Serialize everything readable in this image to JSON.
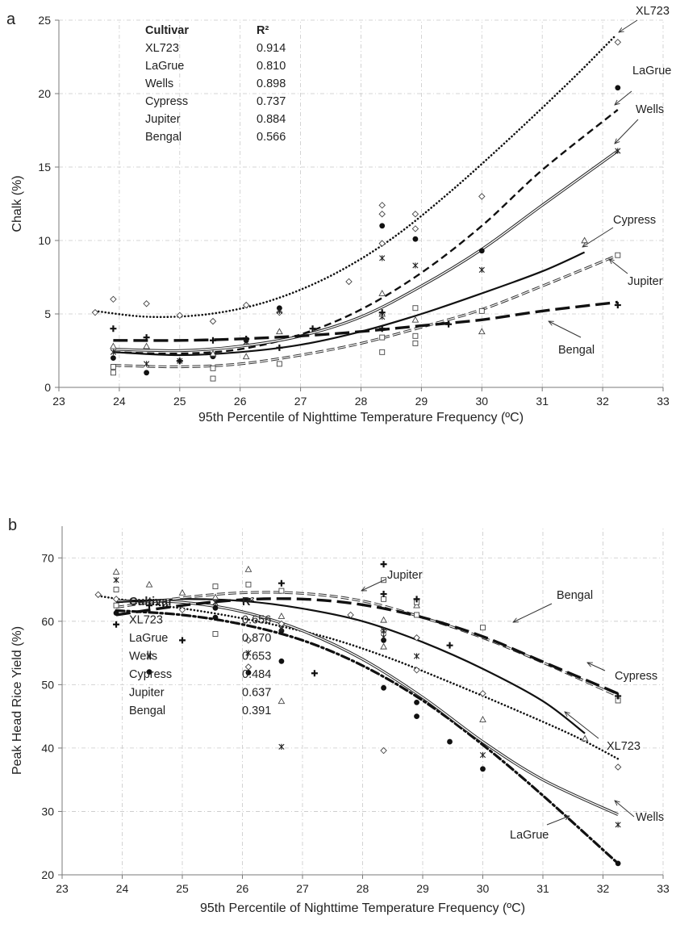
{
  "chart_data": [
    {
      "panel": "a",
      "type": "scatter",
      "xlabel": "95th Percentile of Nighttime Temperature Frequency (ºC)",
      "ylabel": "Chalk (%)",
      "xlim": [
        23,
        33
      ],
      "ylim": [
        0,
        25
      ],
      "xticks": [
        "23",
        "24",
        "25",
        "26",
        "27",
        "28",
        "29",
        "30",
        "31",
        "32",
        "33"
      ],
      "yticks": [
        "0",
        "5",
        "10",
        "15",
        "20",
        "25"
      ],
      "grid": true,
      "table": {
        "header": [
          "Cultivar",
          "R²"
        ],
        "rows": [
          [
            "XL723",
            "0.914"
          ],
          [
            "LaGrue",
            "0.810"
          ],
          [
            "Wells",
            "0.898"
          ],
          [
            "Cypress",
            "0.737"
          ],
          [
            "Jupiter",
            "0.884"
          ],
          [
            "Bengal",
            "0.566"
          ]
        ]
      },
      "series": [
        {
          "name": "XL723",
          "marker": "diamond",
          "trend": "dotted",
          "x": [
            23.6,
            23.9,
            24.45,
            25.0,
            25.55,
            26.1,
            26.65,
            27.8,
            28.35,
            28.35,
            28.35,
            28.9,
            28.9,
            30.0,
            32.25
          ],
          "y": [
            5.1,
            6.0,
            5.7,
            4.9,
            4.5,
            5.6,
            5.1,
            7.2,
            9.8,
            11.8,
            12.4,
            10.8,
            11.8,
            13.0,
            23.5
          ],
          "fit": [
            [
              23.6,
              5.2
            ],
            [
              24.5,
              4.8
            ],
            [
              25.5,
              5.0
            ],
            [
              26.5,
              5.9
            ],
            [
              27.5,
              7.6
            ],
            [
              28.5,
              10.1
            ],
            [
              29.5,
              13.4
            ],
            [
              30.5,
              17.1
            ],
            [
              31.5,
              21.0
            ],
            [
              32.2,
              23.9
            ]
          ]
        },
        {
          "name": "LaGrue",
          "marker": "circle",
          "trend": "dashed",
          "x": [
            23.9,
            24.45,
            25.55,
            26.1,
            26.65,
            28.35,
            28.9,
            30.0,
            32.25
          ],
          "y": [
            2.0,
            1.0,
            2.1,
            3.2,
            5.4,
            11.0,
            10.1,
            9.3,
            20.4
          ],
          "fit": [
            [
              23.9,
              2.4
            ],
            [
              25.0,
              2.3
            ],
            [
              26.0,
              2.6
            ],
            [
              27.0,
              3.6
            ],
            [
              28.0,
              5.3
            ],
            [
              29.0,
              7.8
            ],
            [
              30.0,
              11.0
            ],
            [
              31.0,
              14.8
            ],
            [
              32.25,
              18.9
            ]
          ]
        },
        {
          "name": "Wells",
          "marker": "asterisk",
          "trend": "double",
          "x": [
            23.9,
            24.45,
            25.0,
            25.55,
            26.1,
            26.65,
            28.35,
            28.35,
            28.9,
            30.0,
            32.25
          ],
          "y": [
            2.4,
            1.6,
            1.8,
            2.2,
            3.1,
            5.2,
            8.8,
            4.8,
            8.3,
            8.0,
            16.1
          ],
          "fit": [
            [
              23.9,
              2.6
            ],
            [
              25.0,
              2.5
            ],
            [
              26.0,
              2.8
            ],
            [
              27.0,
              3.5
            ],
            [
              28.0,
              4.8
            ],
            [
              29.0,
              6.9
            ],
            [
              30.0,
              9.4
            ],
            [
              31.0,
              12.4
            ],
            [
              32.25,
              16.1
            ]
          ]
        },
        {
          "name": "Cypress",
          "marker": "triangle",
          "trend": "solid",
          "x": [
            23.9,
            24.45,
            25.55,
            26.1,
            26.65,
            28.35,
            28.35,
            28.9,
            30.0,
            31.7
          ],
          "y": [
            2.8,
            2.8,
            2.3,
            2.1,
            3.8,
            6.4,
            5.0,
            4.6,
            3.8,
            10.0
          ],
          "fit": [
            [
              23.9,
              2.4
            ],
            [
              25.0,
              2.2
            ],
            [
              26.0,
              2.4
            ],
            [
              27.0,
              2.9
            ],
            [
              28.0,
              3.8
            ],
            [
              29.0,
              5.0
            ],
            [
              30.0,
              6.4
            ],
            [
              31.0,
              7.9
            ],
            [
              31.7,
              9.2
            ]
          ]
        },
        {
          "name": "Jupiter",
          "marker": "square",
          "trend": "dashed-double",
          "x": [
            23.9,
            23.9,
            25.55,
            25.55,
            26.65,
            28.35,
            28.35,
            28.9,
            28.9,
            28.9,
            30.0,
            32.25
          ],
          "y": [
            1.0,
            1.4,
            0.6,
            1.3,
            1.6,
            2.4,
            3.4,
            3.0,
            3.5,
            5.4,
            5.2,
            9.0
          ],
          "fit": [
            [
              23.9,
              1.5
            ],
            [
              25.0,
              1.4
            ],
            [
              26.0,
              1.6
            ],
            [
              27.0,
              2.2
            ],
            [
              28.0,
              3.0
            ],
            [
              29.0,
              4.1
            ],
            [
              30.0,
              5.3
            ],
            [
              31.0,
              6.9
            ],
            [
              32.25,
              9.0
            ]
          ]
        },
        {
          "name": "Bengal",
          "marker": "plus",
          "trend": "longdash",
          "x": [
            23.9,
            24.45,
            25.0,
            25.55,
            26.1,
            26.65,
            27.2,
            28.35,
            28.35,
            29.45,
            32.25
          ],
          "y": [
            4.0,
            3.4,
            1.8,
            3.2,
            3.3,
            2.7,
            4.0,
            5.1,
            4.0,
            4.3,
            5.6
          ],
          "fit": [
            [
              23.9,
              3.2
            ],
            [
              25.0,
              3.2
            ],
            [
              26.0,
              3.3
            ],
            [
              27.0,
              3.5
            ],
            [
              28.0,
              3.8
            ],
            [
              29.0,
              4.2
            ],
            [
              30.0,
              4.6
            ],
            [
              31.0,
              5.2
            ],
            [
              32.25,
              5.8
            ]
          ]
        }
      ],
      "annotations": [
        "XL723",
        "LaGrue",
        "Wells",
        "Cypress",
        "Jupiter",
        "Bengal"
      ]
    },
    {
      "panel": "b",
      "type": "scatter",
      "xlabel": "95th Percentile of Nighttime Temperature Frequency (ºC)",
      "ylabel": "Peak Head Rice Yield (%)",
      "xlim": [
        23,
        33
      ],
      "ylim": [
        20,
        75
      ],
      "xticks": [
        "23",
        "24",
        "25",
        "26",
        "27",
        "28",
        "29",
        "30",
        "31",
        "32",
        "33"
      ],
      "yticks": [
        "20",
        "30",
        "40",
        "50",
        "60",
        "70"
      ],
      "grid": true,
      "table": {
        "header": [
          "Cultivar",
          "R²"
        ],
        "rows": [
          [
            "XL723",
            "0.656"
          ],
          [
            "LaGrue",
            "0.870"
          ],
          [
            "Wells",
            "0.653"
          ],
          [
            "Cypress",
            "0.484"
          ],
          [
            "Jupiter",
            "0.637"
          ],
          [
            "Bengal",
            "0.391"
          ]
        ]
      },
      "series": [
        {
          "name": "XL723",
          "marker": "diamond",
          "trend": "dotted",
          "x": [
            23.6,
            23.9,
            25.0,
            26.1,
            26.1,
            26.65,
            27.8,
            28.35,
            28.35,
            28.9,
            28.9,
            30.0,
            32.25
          ],
          "y": [
            64.2,
            63.5,
            61.8,
            57.0,
            52.8,
            59.6,
            61.0,
            58.5,
            39.6,
            57.4,
            52.3,
            48.6,
            37.0
          ],
          "fit": [
            [
              23.6,
              64.0
            ],
            [
              24.5,
              62.7
            ],
            [
              25.5,
              61.3
            ],
            [
              26.5,
              59.5
            ],
            [
              27.5,
              57.2
            ],
            [
              28.5,
              54.0
            ],
            [
              29.5,
              50.2
            ],
            [
              30.5,
              46.2
            ],
            [
              31.5,
              42.0
            ],
            [
              32.25,
              38.3
            ]
          ]
        },
        {
          "name": "LaGrue",
          "marker": "circle",
          "trend": "dashdot",
          "x": [
            23.9,
            24.45,
            25.55,
            25.55,
            26.1,
            26.65,
            26.65,
            28.35,
            28.35,
            28.9,
            28.9,
            29.45,
            30.0,
            32.25
          ],
          "y": [
            61.3,
            52.0,
            62.1,
            60.6,
            51.9,
            58.5,
            53.7,
            57.0,
            49.5,
            47.2,
            45.0,
            41.0,
            36.7,
            21.8
          ],
          "fit": [
            [
              23.9,
              61.7
            ],
            [
              25.0,
              61.0
            ],
            [
              26.0,
              59.5
            ],
            [
              27.0,
              57.0
            ],
            [
              28.0,
              53.0
            ],
            [
              29.0,
              47.5
            ],
            [
              30.0,
              40.5
            ],
            [
              31.0,
              32.5
            ],
            [
              32.25,
              21.8
            ]
          ]
        },
        {
          "name": "Wells",
          "marker": "asterisk",
          "trend": "double",
          "x": [
            23.9,
            24.45,
            25.55,
            26.1,
            26.65,
            26.65,
            28.35,
            28.35,
            28.9,
            30.0,
            32.25
          ],
          "y": [
            66.5,
            54.5,
            63.0,
            55.0,
            58.8,
            40.2,
            57.5,
            58.5,
            54.5,
            38.9,
            27.9
          ],
          "fit": [
            [
              23.9,
              63.2
            ],
            [
              25.0,
              63.0
            ],
            [
              26.0,
              61.5
            ],
            [
              27.0,
              58.5
            ],
            [
              28.0,
              54.0
            ],
            [
              29.0,
              48.0
            ],
            [
              30.0,
              41.0
            ],
            [
              31.0,
              35.0
            ],
            [
              32.25,
              29.5
            ]
          ]
        },
        {
          "name": "Cypress",
          "marker": "triangle",
          "trend": "solid",
          "x": [
            23.9,
            24.45,
            25.0,
            25.55,
            26.1,
            26.65,
            26.65,
            28.35,
            28.35,
            28.9,
            30.0,
            31.7
          ],
          "y": [
            67.8,
            65.8,
            64.5,
            63.8,
            68.2,
            60.8,
            47.4,
            56.0,
            60.2,
            62.5,
            44.5,
            41.5
          ],
          "fit": [
            [
              23.9,
              63.0
            ],
            [
              25.0,
              63.5
            ],
            [
              26.0,
              63.2
            ],
            [
              27.0,
              62.0
            ],
            [
              28.0,
              60.0
            ],
            [
              29.0,
              56.7
            ],
            [
              30.0,
              52.5
            ],
            [
              31.0,
              47.4
            ],
            [
              31.7,
              42.3
            ]
          ]
        },
        {
          "name": "Jupiter",
          "marker": "square",
          "trend": "dashed-double",
          "x": [
            23.9,
            23.9,
            25.55,
            25.55,
            26.1,
            26.65,
            28.35,
            28.35,
            28.9,
            28.9,
            30.0,
            32.25
          ],
          "y": [
            65.0,
            62.5,
            65.5,
            58.0,
            65.8,
            64.8,
            66.5,
            63.5,
            63.0,
            61.0,
            59.0,
            47.5
          ],
          "fit": [
            [
              23.9,
              62.2
            ],
            [
              25.0,
              63.7
            ],
            [
              26.0,
              64.5
            ],
            [
              27.0,
              64.4
            ],
            [
              28.0,
              63.2
            ],
            [
              29.0,
              60.6
            ],
            [
              30.0,
              57.4
            ],
            [
              31.0,
              53.5
            ],
            [
              32.25,
              48.2
            ]
          ]
        },
        {
          "name": "Bengal",
          "marker": "plus",
          "trend": "longdash",
          "x": [
            23.9,
            24.45,
            25.0,
            26.65,
            27.2,
            28.35,
            28.35,
            28.9,
            29.45,
            32.25
          ],
          "y": [
            59.5,
            62.5,
            57.0,
            66.0,
            51.8,
            69.0,
            64.3,
            63.5,
            56.2,
            48.2
          ],
          "fit": [
            [
              23.9,
              61.0
            ],
            [
              25.0,
              62.5
            ],
            [
              26.0,
              63.4
            ],
            [
              27.0,
              63.5
            ],
            [
              28.0,
              62.6
            ],
            [
              29.0,
              60.6
            ],
            [
              30.0,
              57.6
            ],
            [
              31.0,
              53.6
            ],
            [
              32.25,
              48.6
            ]
          ]
        }
      ],
      "annotations": [
        "Jupiter",
        "Bengal",
        "Cypress",
        "XL723",
        "Wells",
        "LaGrue"
      ]
    }
  ]
}
